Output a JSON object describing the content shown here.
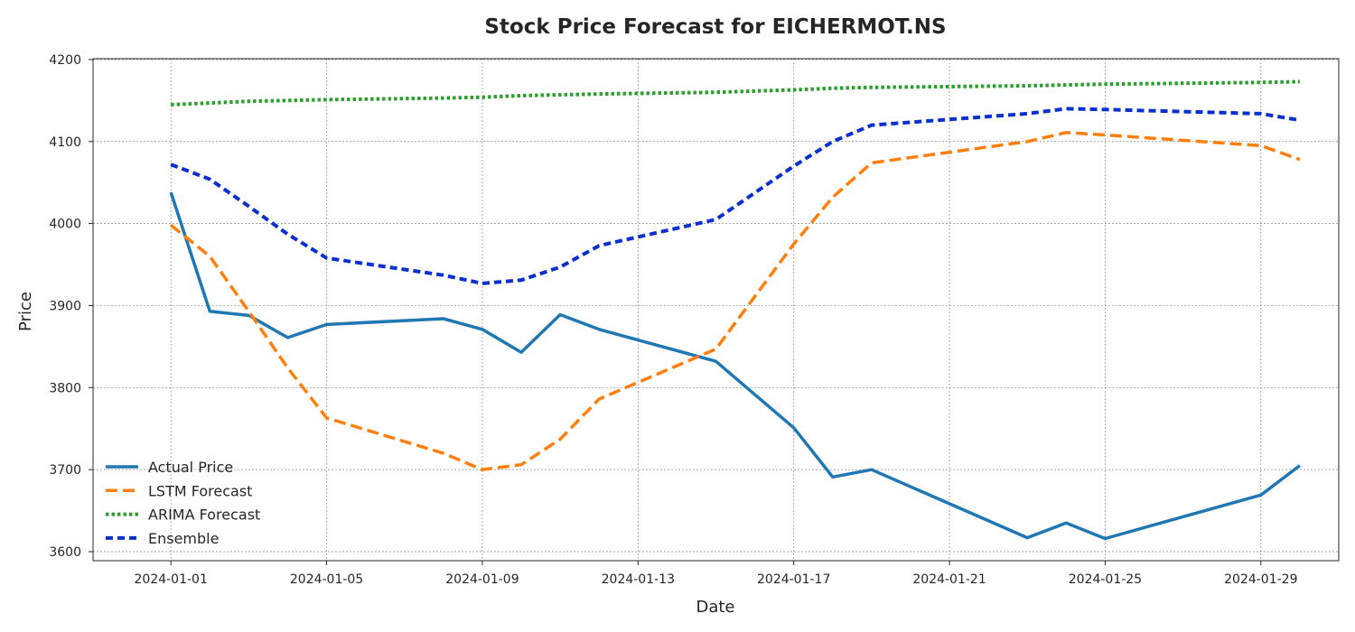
{
  "chart_data": {
    "type": "line",
    "title": "Stock Price Forecast for EICHERMOT.NS",
    "xlabel": "Date",
    "ylabel": "Price",
    "x_range": [
      "2023-12-30",
      "2024-01-31"
    ],
    "ylim": [
      3589,
      4201
    ],
    "grid": true,
    "legend_position": "lower-left",
    "x_ticks": [
      "2024-01-01",
      "2024-01-05",
      "2024-01-09",
      "2024-01-13",
      "2024-01-17",
      "2024-01-21",
      "2024-01-25",
      "2024-01-29"
    ],
    "y_ticks": [
      3600,
      3700,
      3800,
      3900,
      4000,
      4100,
      4200
    ],
    "x": [
      "2024-01-01",
      "2024-01-02",
      "2024-01-03",
      "2024-01-04",
      "2024-01-05",
      "2024-01-08",
      "2024-01-09",
      "2024-01-10",
      "2024-01-11",
      "2024-01-12",
      "2024-01-15",
      "2024-01-17",
      "2024-01-18",
      "2024-01-19",
      "2024-01-23",
      "2024-01-24",
      "2024-01-25",
      "2024-01-29",
      "2024-01-30"
    ],
    "series": [
      {
        "name": "Actual Price",
        "color": "#1f77b4",
        "style": "solid",
        "values": [
          4038,
          3893,
          3888,
          3861,
          3877,
          3884,
          3871,
          3843,
          3889,
          3871,
          3832,
          3751,
          3691,
          3700,
          3617,
          3635,
          3616,
          3669,
          3705
        ]
      },
      {
        "name": "LSTM Forecast",
        "color": "#ff7f0e",
        "style": "dashed",
        "values": [
          3998,
          3960,
          3893,
          3824,
          3763,
          3720,
          3700,
          3706,
          3737,
          3786,
          3847,
          3975,
          4032,
          4074,
          4100,
          4111,
          4108,
          4095,
          4078
        ]
      },
      {
        "name": "ARIMA Forecast",
        "color": "#2ca02c",
        "style": "dotted",
        "values": [
          4145,
          4147,
          4149,
          4150,
          4151,
          4153,
          4154,
          4156,
          4157,
          4158,
          4160,
          4163,
          4165,
          4166,
          4168,
          4169,
          4170,
          4172,
          4173
        ]
      },
      {
        "name": "Ensemble",
        "color": "#0a2fd0",
        "style": "dashdot-dense",
        "values": [
          4072,
          4054,
          4021,
          3987,
          3958,
          3937,
          3927,
          3931,
          3947,
          3973,
          4005,
          4070,
          4100,
          4120,
          4134,
          4140,
          4139,
          4134,
          4126
        ]
      }
    ]
  }
}
